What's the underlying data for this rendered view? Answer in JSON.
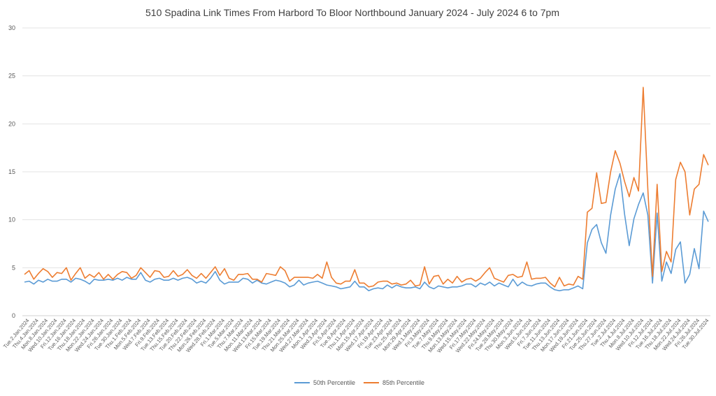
{
  "chart_data": {
    "type": "line",
    "title": "510 Spadina Link Times From Harbord To Bloor Northbound January 2024 - July 2024 6 to 7pm",
    "xlabel": "",
    "ylabel": "",
    "ylim": [
      0,
      30
    ],
    "yticks": [
      0,
      5,
      10,
      15,
      20,
      25,
      30
    ],
    "grid": true,
    "legend_position": "bottom",
    "x_tick_labels": [
      "Tue.2.Jan.2024",
      "Thu.4.Jan.2024",
      "Mon.8.Jan.2024",
      "Wed.10.Jan.2024",
      "Fri.12.Jan.2024",
      "Tue.16.Jan.2024",
      "Thu.18.Jan.2024",
      "Mon.22.Jan.2024",
      "Wed.24.Jan.2024",
      "Fri.26.Jan.2024",
      "Tue.30.Jan.2024",
      "Thu.1.Feb.2024",
      "Mon.5.Feb.2024",
      "Wed.7.Feb.2024",
      "Fri.9.Feb.2024",
      "Tue.13.Feb.2024",
      "Thu.15.Feb.2024",
      "Tue.20.Feb.2024",
      "Thu.22.Feb.2024",
      "Mon.26.Feb.2024",
      "Wed.28.Feb.2024",
      "Fri.1.Mar.2024",
      "Tue.5.Mar.2024",
      "Thu.7.Mar.2024",
      "Mon.11.Mar.2024",
      "Wed.13.Mar.2024",
      "Fri.15.Mar.2024",
      "Tue.19.Mar.2024",
      "Thu.21.Mar.2024",
      "Mon.25.Mar.2024",
      "Wed.27.Mar.2024",
      "Mon.1.Apr.2024",
      "Wed.3.Apr.2024",
      "Fri.5.Apr.2024",
      "Tue.9.Apr.2024",
      "Thu.11.Apr.2024",
      "Mon.15.Apr.2024",
      "Wed.17.Apr.2024",
      "Fri.19.Apr.2024",
      "Tue.23.Apr.2024",
      "Thu.25.Apr.2024",
      "Mon.29.Apr.2024",
      "Wed.1.May.2024",
      "Fri.3.May.2024",
      "Tue.7.May.2024",
      "Thu.9.May.2024",
      "Mon.13.May.2024",
      "Wed.15.May.2024",
      "Fri.17.May.2024",
      "Wed.22.May.2024",
      "Fri.24.May.2024",
      "Tue.28.May.2024",
      "Thu.30.May.2024",
      "Mon.3.Jun.2024",
      "Wed.5.Jun.2024",
      "Fri.7.Jun.2024",
      "Tue.11.Jun.2024",
      "Thu.13.Jun.2024",
      "Mon.17.Jun.2024",
      "Wed.19.Jun.2024",
      "Fri.21.Jun.2024",
      "Tue.25.Jun.2024",
      "Thu.27.Jun.2024",
      "Tue.2.Jul.2024",
      "Thu.4.Jul.2024",
      "Mon.8.Jul.2024",
      "Wed.10.Jul.2024",
      "Fri.12.Jul.2024",
      "Tue.16.Jul.2024",
      "Thu.18.Jul.2024",
      "Mon.22.Jul.2024",
      "Wed.24.Jul.2024",
      "Fri.26.Jul.2024",
      "Tue.30.Jul.2024"
    ],
    "series": [
      {
        "name": "50th Percentile",
        "color": "#5B9BD5",
        "values": [
          3.5,
          3.6,
          3.3,
          3.7,
          3.5,
          3.8,
          3.6,
          3.6,
          3.8,
          3.8,
          3.5,
          3.9,
          3.8,
          3.6,
          3.3,
          3.8,
          3.7,
          3.7,
          3.8,
          3.7,
          3.9,
          3.7,
          4.0,
          3.8,
          3.8,
          4.5,
          3.7,
          3.5,
          3.8,
          3.9,
          3.7,
          3.7,
          3.9,
          3.7,
          3.9,
          4.0,
          3.8,
          3.4,
          3.6,
          3.4,
          3.9,
          4.6,
          3.7,
          3.3,
          3.5,
          3.5,
          3.5,
          3.9,
          3.8,
          3.4,
          3.7,
          3.4,
          3.3,
          3.5,
          3.7,
          3.6,
          3.4,
          3.0,
          3.2,
          3.7,
          3.2,
          3.4,
          3.5,
          3.6,
          3.4,
          3.2,
          3.1,
          3.0,
          2.8,
          2.9,
          3.0,
          3.6,
          3.0,
          3.0,
          2.6,
          2.8,
          2.9,
          2.8,
          3.2,
          2.9,
          3.2,
          3.0,
          2.9,
          2.9,
          3.0,
          2.8,
          3.5,
          3.0,
          2.8,
          3.1,
          3.0,
          2.9,
          3.0,
          3.0,
          3.1,
          3.3,
          3.3,
          3.0,
          3.4,
          3.2,
          3.5,
          3.1,
          3.4,
          3.2,
          3.0,
          3.8,
          3.1,
          3.5,
          3.2,
          3.1,
          3.3,
          3.4,
          3.4,
          3.0,
          2.7,
          2.6,
          2.7,
          2.7,
          2.9,
          3.1,
          2.8,
          7.6,
          9.0,
          9.5,
          7.6,
          6.5,
          10.5,
          13.2,
          14.8,
          10.6,
          7.3,
          10.1,
          11.6,
          12.8,
          10.5,
          3.4,
          10.7,
          3.6,
          5.6,
          4.4,
          6.9,
          7.7,
          3.4,
          4.3,
          7.0,
          4.9,
          10.9,
          9.8
        ]
      },
      {
        "name": "85th Percentile",
        "color": "#ED7D31",
        "values": [
          4.3,
          4.7,
          3.8,
          4.4,
          4.9,
          4.6,
          4.0,
          4.5,
          4.4,
          5.0,
          3.7,
          4.4,
          5.0,
          3.9,
          4.3,
          4.0,
          4.5,
          3.8,
          4.3,
          3.8,
          4.3,
          4.6,
          4.5,
          3.9,
          4.2,
          5.0,
          4.5,
          4.0,
          4.7,
          4.6,
          4.0,
          4.1,
          4.7,
          4.1,
          4.3,
          4.8,
          4.2,
          3.9,
          4.4,
          3.9,
          4.5,
          5.1,
          4.2,
          4.9,
          3.9,
          3.7,
          4.3,
          4.3,
          4.4,
          3.8,
          3.8,
          3.5,
          4.4,
          4.3,
          4.2,
          5.1,
          4.7,
          3.6,
          4.0,
          4.0,
          4.0,
          4.0,
          3.9,
          4.3,
          3.9,
          5.6,
          4.0,
          3.4,
          3.3,
          3.6,
          3.6,
          4.8,
          3.4,
          3.4,
          3.0,
          3.1,
          3.5,
          3.6,
          3.6,
          3.3,
          3.4,
          3.2,
          3.3,
          3.7,
          3.1,
          3.2,
          5.1,
          3.3,
          4.1,
          4.2,
          3.3,
          3.8,
          3.4,
          4.1,
          3.5,
          3.8,
          3.9,
          3.6,
          3.9,
          4.5,
          5.0,
          3.9,
          3.7,
          3.5,
          4.2,
          4.3,
          4.0,
          4.1,
          5.6,
          3.8,
          3.9,
          3.9,
          4.0,
          3.4,
          3.0,
          4.0,
          3.1,
          3.3,
          3.2,
          4.1,
          3.8,
          10.8,
          11.2,
          14.9,
          11.7,
          11.8,
          15.0,
          17.2,
          15.9,
          14.0,
          12.4,
          14.4,
          13.0,
          23.8,
          13.2,
          4.1,
          13.7,
          4.6,
          6.7,
          5.6,
          14.2,
          16.0,
          15.0,
          10.5,
          13.2,
          13.7,
          16.8,
          15.7
        ]
      }
    ]
  }
}
